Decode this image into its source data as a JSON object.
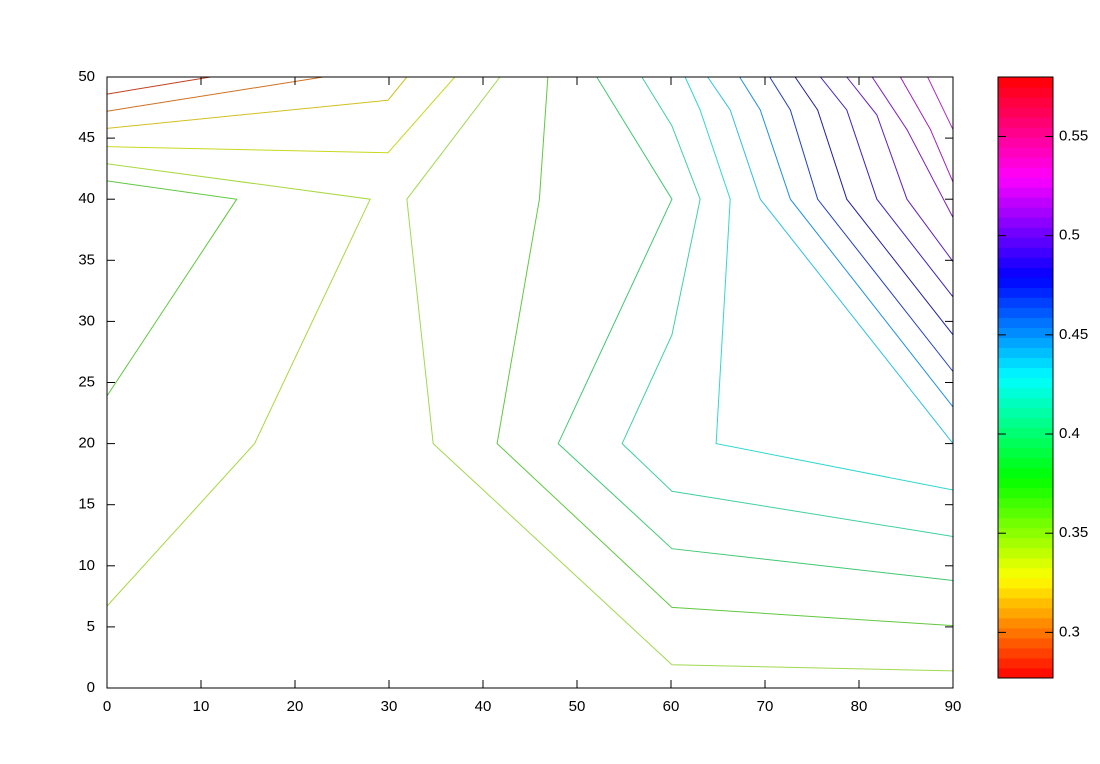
{
  "chart_data": {
    "type": "contour",
    "xlim": [
      0,
      90
    ],
    "ylim": [
      0,
      50
    ],
    "xticks": [
      0,
      10,
      20,
      30,
      40,
      50,
      60,
      70,
      80,
      90
    ],
    "yticks": [
      0,
      5,
      10,
      15,
      20,
      25,
      30,
      35,
      40,
      45,
      50
    ],
    "colorbar": {
      "lim": [
        0.277,
        0.58
      ],
      "ticks": [
        0.3,
        0.35,
        0.4,
        0.45,
        0.5,
        0.55
      ],
      "palette": "hsv"
    },
    "lines": [
      {
        "color": "#c04020",
        "x": [
          0,
          11
        ],
        "y": [
          48.6,
          50
        ]
      },
      {
        "color": "#d07020",
        "x": [
          0,
          23
        ],
        "y": [
          47.2,
          50
        ]
      },
      {
        "color": "#d0c020",
        "x": [
          0,
          29.9,
          31.9
        ],
        "y": [
          45.8,
          48.1,
          50
        ]
      },
      {
        "color": "#c8d820",
        "x": [
          0,
          29.9,
          37
        ],
        "y": [
          44.3,
          43.8,
          50
        ]
      },
      {
        "color": "#a8d840",
        "x": [
          0,
          28,
          15.7,
          0
        ],
        "y": [
          42.9,
          40,
          20,
          6.7
        ]
      },
      {
        "color": "#60c840",
        "x": [
          0,
          13.8,
          0
        ],
        "y": [
          41.5,
          40,
          23.9
        ]
      },
      {
        "color": "#a0d850",
        "x": [
          41.8,
          31.9,
          34.7,
          60.1,
          90
        ],
        "y": [
          50,
          40,
          20,
          1.9,
          1.4
        ]
      },
      {
        "color": "#60c840",
        "x": [
          46.9,
          46,
          41.5,
          60.1,
          90
        ],
        "y": [
          50,
          40,
          20,
          6.6,
          5.1
        ]
      },
      {
        "color": "#40c870",
        "x": [
          52.1,
          60.1,
          48,
          60.1,
          90
        ],
        "y": [
          50,
          40,
          20,
          11.4,
          8.8
        ]
      },
      {
        "color": "#40d0a0",
        "x": [
          56.9,
          60.1,
          63.1,
          60.1,
          54.8,
          60.1,
          90
        ],
        "y": [
          50,
          46,
          40,
          28.9,
          20,
          16.1,
          12.4
        ]
      },
      {
        "color": "#30d8d0",
        "x": [
          61.5,
          63.1,
          66.3,
          64.8,
          90
        ],
        "y": [
          50,
          47.3,
          40,
          20,
          16.2
        ]
      },
      {
        "color": "#30c0e0",
        "x": [
          63.9,
          66.3,
          69.5,
          90
        ],
        "y": [
          50,
          47.3,
          40,
          20
        ]
      },
      {
        "color": "#2090e0",
        "x": [
          67.3,
          69.5,
          72.7,
          90
        ],
        "y": [
          50,
          47.3,
          40,
          23
        ]
      },
      {
        "color": "#2040c0",
        "x": [
          70.5,
          72.7,
          75.6,
          90
        ],
        "y": [
          50,
          47.3,
          40,
          25.9
        ]
      },
      {
        "color": "#2020a0",
        "x": [
          73.2,
          75.6,
          78.7,
          90
        ],
        "y": [
          50,
          47.3,
          40,
          28.9
        ]
      },
      {
        "color": "#4020c0",
        "x": [
          75.9,
          78.7,
          81.9,
          90
        ],
        "y": [
          50,
          47.3,
          40,
          32
        ]
      },
      {
        "color": "#6020c0",
        "x": [
          78.7,
          81.9,
          85.1,
          90
        ],
        "y": [
          50,
          46.9,
          40,
          34.9
        ]
      },
      {
        "color": "#8020c0",
        "x": [
          81.4,
          85.1,
          90
        ],
        "y": [
          50,
          45.7,
          38.5
        ]
      },
      {
        "color": "#a020c0",
        "x": [
          84.4,
          87.6,
          90
        ],
        "y": [
          50,
          45.7,
          41.4
        ]
      },
      {
        "color": "#b030c0",
        "x": [
          87.3,
          90
        ],
        "y": [
          50,
          45.7
        ]
      }
    ]
  }
}
